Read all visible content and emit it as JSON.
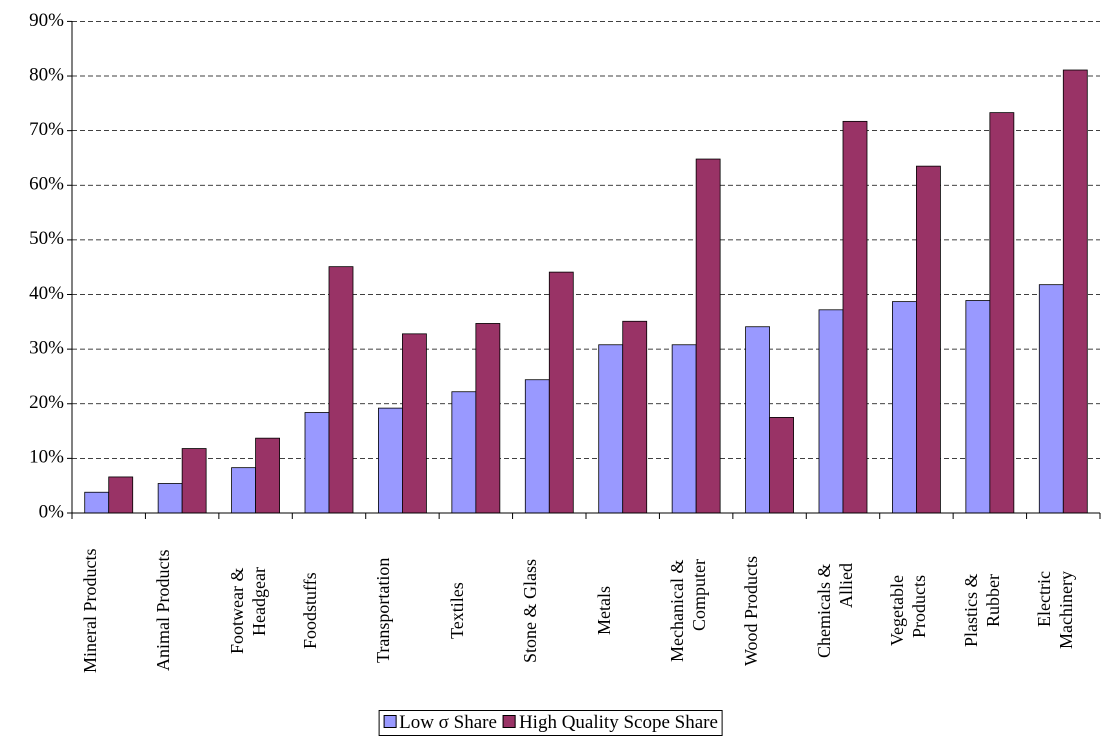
{
  "chart_data": {
    "type": "bar",
    "categories": [
      "Mineral Products",
      "Animal Products",
      "Footwear &\nHeadgear",
      "Foodstuffs",
      "Transportation",
      "Textiles",
      "Stone & Glass",
      "Metals",
      "Mechanical &\nComputer",
      "Wood Products",
      "Chemicals &\nAllied",
      "Vegetable\nProducts",
      "Plastics &\nRubber",
      "Electric\nMachinery"
    ],
    "series": [
      {
        "name": "Low σ Share",
        "color": "#9999ff",
        "values": [
          3.8,
          5.4,
          8.3,
          18.4,
          19.2,
          22.2,
          24.4,
          30.8,
          30.8,
          34.1,
          37.2,
          38.7,
          38.9,
          41.8
        ]
      },
      {
        "name": "High Quality Scope Share",
        "color": "#993366",
        "values": [
          6.6,
          11.8,
          13.7,
          45.1,
          32.8,
          34.7,
          44.1,
          35.1,
          64.8,
          17.5,
          71.7,
          63.5,
          73.3,
          81.1
        ]
      }
    ],
    "ylim": [
      0,
      90
    ],
    "yticks": [
      {
        "value": 0,
        "label": "0%"
      },
      {
        "value": 10,
        "label": "10%"
      },
      {
        "value": 20,
        "label": "20%"
      },
      {
        "value": 30,
        "label": "30%"
      },
      {
        "value": 40,
        "label": "40%"
      },
      {
        "value": 50,
        "label": "50%"
      },
      {
        "value": 60,
        "label": "60%"
      },
      {
        "value": 70,
        "label": "70%"
      },
      {
        "value": 80,
        "label": "80%"
      },
      {
        "value": 90,
        "label": "90%"
      }
    ],
    "grid": true,
    "legend": "bottom"
  }
}
